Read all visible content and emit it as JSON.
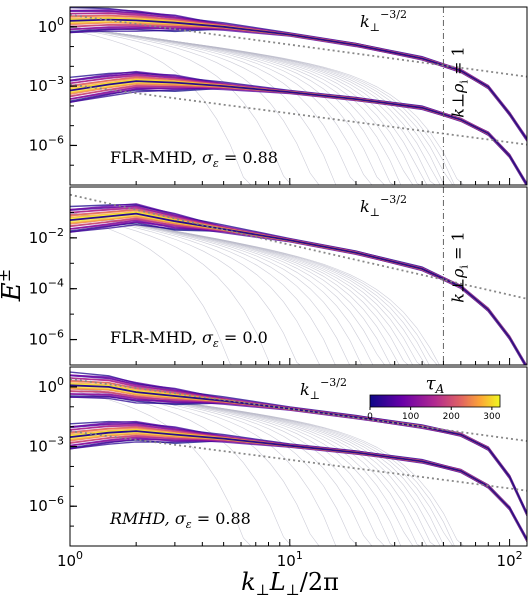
{
  "chart_data": [
    {
      "type": "line",
      "panel": "top",
      "annotation": "FLR-MHD, σ_ε = 0.88",
      "slope_label": "k⊥^−3/2",
      "scale_label": "k⊥ρi = 1",
      "scale_k": 50,
      "ylim": [
        1e-08,
        10
      ],
      "yscale": "log",
      "yticks": [
        "10^0",
        "10^-3",
        "10^-6"
      ],
      "series": [
        {
          "points": [
            [
              1,
              2.0
            ],
            [
              1.5,
              2.3
            ],
            [
              2,
              2.1
            ],
            [
              3,
              1.6
            ],
            [
              5,
              1.0
            ],
            [
              10,
              0.4
            ],
            [
              20,
              0.12
            ],
            [
              40,
              0.025
            ],
            [
              60,
              0.006
            ],
            [
              80,
              0.0009
            ],
            [
              100,
              4e-05
            ],
            [
              120,
              2e-06
            ]
          ]
        },
        {
          "points": [
            [
              1,
              0.0006
            ],
            [
              1.5,
              0.0012
            ],
            [
              2,
              0.0018
            ],
            [
              3,
              0.0015
            ],
            [
              5,
              0.001
            ],
            [
              10,
              0.0005
            ],
            [
              20,
              0.00022
            ],
            [
              40,
              8e-05
            ],
            [
              60,
              2e-05
            ],
            [
              80,
              4e-06
            ],
            [
              100,
              3e-07
            ],
            [
              120,
              1e-08
            ]
          ]
        }
      ],
      "reference_lines": [
        {
          "name": "k^-3/2 upper",
          "points": [
            [
              1,
              4.0
            ],
            [
              120,
              0.003
            ]
          ]
        },
        {
          "name": "k^-3/2 lower",
          "points": [
            [
              1,
              0.0012
            ],
            [
              120,
              1.1e-06
            ]
          ]
        }
      ]
    },
    {
      "type": "line",
      "panel": "middle",
      "annotation": "FLR-MHD, σ_ε = 0.0",
      "slope_label": "k⊥^−3/2",
      "scale_label": "k⊥ρi = 1",
      "scale_k": 50,
      "ylim": [
        1e-07,
        1
      ],
      "yscale": "log",
      "yticks": [
        "10^-2",
        "10^-4",
        "10^-6"
      ],
      "series": [
        {
          "points": [
            [
              1,
              0.05
            ],
            [
              1.5,
              0.07
            ],
            [
              2,
              0.09
            ],
            [
              3,
              0.045
            ],
            [
              5,
              0.022
            ],
            [
              10,
              0.008
            ],
            [
              20,
              0.0026
            ],
            [
              40,
              0.0006
            ],
            [
              60,
              0.00012
            ],
            [
              80,
              1.5e-05
            ],
            [
              100,
              1.2e-06
            ],
            [
              120,
              8e-08
            ]
          ]
        }
      ],
      "reference_lines": [
        {
          "name": "k^-3/2",
          "points": [
            [
              1,
              0.5
            ],
            [
              120,
              4e-05
            ]
          ]
        }
      ]
    },
    {
      "type": "line",
      "panel": "bottom",
      "annotation": "RMHD, σ_ε = 0.88",
      "slope_label": "k⊥^−3/2",
      "ylim": [
        1e-08,
        10
      ],
      "yscale": "log",
      "yticks": [
        "10^0",
        "10^-3",
        "10^-6"
      ],
      "xlabel": "k⊥L⊥/2π",
      "xscale": "log",
      "xlim": [
        1,
        120
      ],
      "xticks": [
        "10^0",
        "10^1",
        "10^2"
      ],
      "series": [
        {
          "points": [
            [
              1,
              1.2
            ],
            [
              1.5,
              1.0
            ],
            [
              2,
              0.55
            ],
            [
              3,
              0.35
            ],
            [
              5,
              0.2
            ],
            [
              10,
              0.08
            ],
            [
              20,
              0.03
            ],
            [
              40,
              0.01
            ],
            [
              60,
              0.004
            ],
            [
              80,
              0.0008
            ],
            [
              100,
              3e-05
            ],
            [
              120,
              4e-07
            ]
          ]
        },
        {
          "points": [
            [
              1,
              0.003
            ],
            [
              1.5,
              0.005
            ],
            [
              2,
              0.006
            ],
            [
              3,
              0.004
            ],
            [
              5,
              0.0025
            ],
            [
              10,
              0.0011
            ],
            [
              20,
              0.0005
            ],
            [
              40,
              0.00018
            ],
            [
              60,
              6e-05
            ],
            [
              80,
              1e-05
            ],
            [
              100,
              8e-07
            ],
            [
              120,
              2e-08
            ]
          ]
        }
      ],
      "reference_lines": [
        {
          "name": "k^-3/2 upper",
          "points": [
            [
              1,
              2.5
            ],
            [
              120,
              0.0019
            ]
          ]
        },
        {
          "name": "k^-3/2 lower",
          "points": [
            [
              1,
              0.006
            ],
            [
              120,
              6e-06
            ]
          ]
        }
      ],
      "colorbar": {
        "label": "τ_A",
        "range": [
          0,
          320
        ],
        "ticks": [
          "0",
          "100",
          "200",
          "300"
        ],
        "colormap": "plasma"
      }
    }
  ],
  "ylabel": "E^±",
  "colors": {
    "early": "#2a0b8c",
    "mid": "#c43c75",
    "late": "#f7e425",
    "faint": "#6f6ab8",
    "reference": "#888888",
    "vline": "#666666"
  }
}
